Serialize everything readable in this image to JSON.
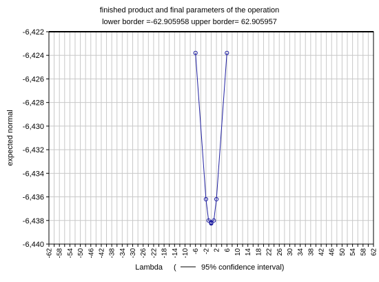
{
  "chart_data": {
    "type": "scatter",
    "title": "finished product and final parameters of the operation",
    "subtitle": "lower border =-62.905958  upper border= 62.905957",
    "xlabel": "Lambda",
    "ylabel": "expected normal",
    "legend_text": "95% confidence interval)",
    "legend_open": "(",
    "xlim": [
      -62,
      62
    ],
    "ylim": [
      -6.44,
      -6.422
    ],
    "x_ticks": [
      -62,
      -60,
      -58,
      -56,
      -54,
      -52,
      -50,
      -48,
      -46,
      -44,
      -42,
      -40,
      -38,
      -36,
      -34,
      -32,
      -30,
      -28,
      -26,
      -24,
      -22,
      -20,
      -18,
      -16,
      -14,
      -12,
      -10,
      -8,
      -6,
      -4,
      -2,
      0,
      2,
      4,
      6,
      8,
      10,
      12,
      14,
      16,
      18,
      20,
      22,
      24,
      26,
      28,
      30,
      32,
      34,
      36,
      38,
      40,
      42,
      44,
      46,
      48,
      50,
      52,
      54,
      56,
      58,
      60,
      62
    ],
    "x_tick_labels": [
      "-62",
      "-58",
      "-54",
      "-50",
      "-46",
      "-42",
      "-38",
      "-34",
      "-30",
      "-26",
      "-22",
      "-18",
      "-14",
      "-10",
      "-6",
      "-2",
      "2",
      "6",
      "10",
      "14",
      "18",
      "22",
      "26",
      "30",
      "34",
      "38",
      "42",
      "46",
      "50",
      "54",
      "58",
      "62"
    ],
    "y_tick_labels": [
      "-6,422",
      "-6,424",
      "-6,426",
      "-6,428",
      "-6,430",
      "-6,432",
      "-6,434",
      "-6,436",
      "-6,438",
      "-6,440"
    ],
    "y_ticks": [
      -6.422,
      -6.424,
      -6.426,
      -6.428,
      -6.43,
      -6.432,
      -6.434,
      -6.436,
      -6.438,
      -6.44
    ],
    "series": [
      {
        "x": [
          -6,
          -2,
          -1,
          0,
          0,
          0,
          0,
          0,
          0,
          1,
          2,
          6
        ],
        "y": [
          -6.4238,
          -6.4362,
          -6.438,
          -6.43815,
          -6.4382,
          -6.43823,
          -6.43825,
          -6.43822,
          -6.43818,
          -6.438,
          -6.4362,
          -6.4238
        ]
      }
    ],
    "colors": {
      "series": "#1f1fa0",
      "grid": "#c8c8c8",
      "frame": "#000000",
      "upper_border": "#000000"
    },
    "grid": true,
    "upper_border_line": -6.422
  }
}
